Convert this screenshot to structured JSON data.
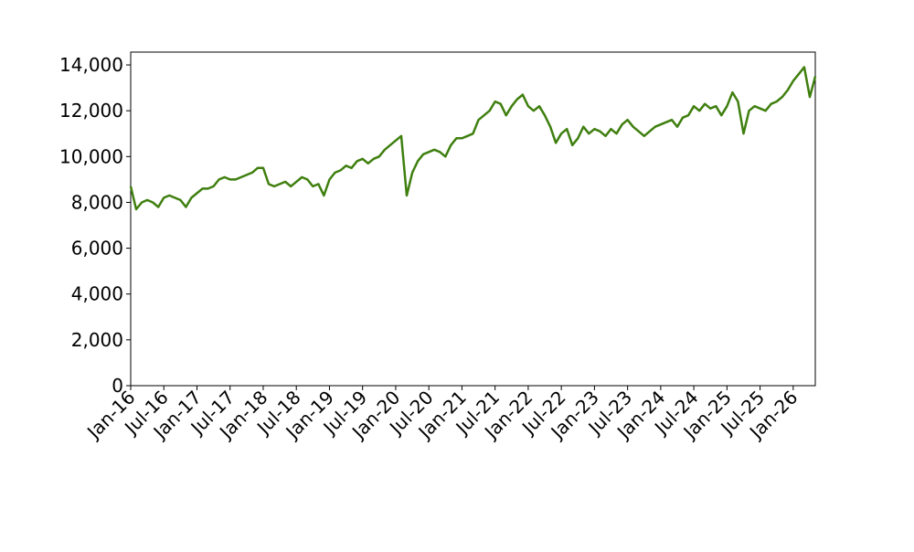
{
  "chart_data": {
    "type": "line",
    "x": [
      "2016-01",
      "2016-02",
      "2016-03",
      "2016-04",
      "2016-05",
      "2016-06",
      "2016-07",
      "2016-08",
      "2016-09",
      "2016-10",
      "2016-11",
      "2016-12",
      "2017-01",
      "2017-02",
      "2017-03",
      "2017-04",
      "2017-05",
      "2017-06",
      "2017-07",
      "2017-08",
      "2017-09",
      "2017-10",
      "2017-11",
      "2017-12",
      "2018-01",
      "2018-02",
      "2018-03",
      "2018-04",
      "2018-05",
      "2018-06",
      "2018-07",
      "2018-08",
      "2018-09",
      "2018-10",
      "2018-11",
      "2018-12",
      "2019-01",
      "2019-02",
      "2019-03",
      "2019-04",
      "2019-05",
      "2019-06",
      "2019-07",
      "2019-08",
      "2019-09",
      "2019-10",
      "2019-11",
      "2019-12",
      "2020-01",
      "2020-02",
      "2020-03",
      "2020-04",
      "2020-05",
      "2020-06",
      "2020-07",
      "2020-08",
      "2020-09",
      "2020-10",
      "2020-11",
      "2020-12",
      "2021-01",
      "2021-02",
      "2021-03",
      "2021-04",
      "2021-05",
      "2021-06",
      "2021-07",
      "2021-08",
      "2021-09",
      "2021-10",
      "2021-11",
      "2021-12",
      "2022-01",
      "2022-02",
      "2022-03",
      "2022-04",
      "2022-05",
      "2022-06",
      "2022-07",
      "2022-08",
      "2022-09",
      "2022-10",
      "2022-11",
      "2022-12",
      "2023-01",
      "2023-02",
      "2023-03",
      "2023-04",
      "2023-05",
      "2023-06",
      "2023-07",
      "2023-08",
      "2023-09",
      "2023-10",
      "2023-11",
      "2023-12",
      "2024-01",
      "2024-02",
      "2024-03",
      "2024-04",
      "2024-05",
      "2024-06",
      "2024-07",
      "2024-08",
      "2024-09",
      "2024-10",
      "2024-11",
      "2024-12",
      "2025-01",
      "2025-02",
      "2025-03",
      "2025-04",
      "2025-05",
      "2025-06",
      "2025-07",
      "2025-08",
      "2025-09",
      "2025-10",
      "2025-11",
      "2025-12",
      "2026-01",
      "2026-02",
      "2026-03",
      "2026-04",
      "2026-05"
    ],
    "series": [
      {
        "color": "#3f7f0f",
        "values": [
          8700,
          7700,
          8000,
          8100,
          8000,
          7800,
          8200,
          8300,
          8200,
          8100,
          7800,
          8200,
          8400,
          8600,
          8600,
          8700,
          9000,
          9100,
          9000,
          9000,
          9100,
          9200,
          9300,
          9500,
          9500,
          8800,
          8700,
          8800,
          8900,
          8700,
          8900,
          9100,
          9000,
          8700,
          8800,
          8300,
          9000,
          9300,
          9400,
          9600,
          9500,
          9800,
          9900,
          9700,
          9900,
          10000,
          10300,
          10500,
          10700,
          10900,
          8300,
          9300,
          9800,
          10100,
          10200,
          10300,
          10200,
          10000,
          10500,
          10800,
          10800,
          10900,
          11000,
          11600,
          11800,
          12000,
          12400,
          12300,
          11800,
          12200,
          12500,
          12700,
          12200,
          12000,
          12200,
          11800,
          11300,
          10600,
          11000,
          11200,
          10500,
          10800,
          11300,
          11000,
          11200,
          11100,
          10900,
          11200,
          11000,
          11400,
          11600,
          11300,
          11100,
          10900,
          11100,
          11300,
          11400,
          11500,
          11600,
          11300,
          11700,
          11800,
          12200,
          12000,
          12300,
          12100,
          12200,
          11800,
          12200,
          12800,
          12400,
          11000,
          12000,
          12200,
          12100,
          12000,
          12300,
          12400,
          12600,
          12900,
          13300,
          13600,
          13900,
          12600,
          13500
        ]
      }
    ],
    "xlim": [
      "2016-01",
      "2026-05"
    ],
    "xticks": [
      {
        "value": "2016-01",
        "label": "Jan-16"
      },
      {
        "value": "2016-07",
        "label": "Jul-16"
      },
      {
        "value": "2017-01",
        "label": "Jan-17"
      },
      {
        "value": "2017-07",
        "label": "Jul-17"
      },
      {
        "value": "2018-01",
        "label": "Jan-18"
      },
      {
        "value": "2018-07",
        "label": "Jul-18"
      },
      {
        "value": "2019-01",
        "label": "Jan-19"
      },
      {
        "value": "2019-07",
        "label": "Jul-19"
      },
      {
        "value": "2020-01",
        "label": "Jan-20"
      },
      {
        "value": "2020-07",
        "label": "Jul-20"
      },
      {
        "value": "2021-01",
        "label": "Jan-21"
      },
      {
        "value": "2021-07",
        "label": "Jul-21"
      },
      {
        "value": "2022-01",
        "label": "Jan-22"
      },
      {
        "value": "2022-07",
        "label": "Jul-22"
      },
      {
        "value": "2023-01",
        "label": "Jan-23"
      },
      {
        "value": "2023-07",
        "label": "Jul-23"
      },
      {
        "value": "2024-01",
        "label": "Jan-24"
      },
      {
        "value": "2024-07",
        "label": "Jul-24"
      },
      {
        "value": "2025-01",
        "label": "Jan-25"
      },
      {
        "value": "2025-07",
        "label": "Jul-25"
      },
      {
        "value": "2026-01",
        "label": "Jan-26"
      }
    ],
    "ylim": [
      0,
      14560
    ],
    "yticks": [
      0,
      {
        "value": 2000,
        "label": "2,000"
      },
      {
        "value": 4000,
        "label": "4,000"
      },
      {
        "value": 6000,
        "label": "6,000"
      },
      {
        "value": 8000,
        "label": "8,000"
      },
      {
        "value": 10000,
        "label": "10,000"
      },
      {
        "value": 12000,
        "label": "12,000"
      },
      {
        "value": 14000,
        "label": "14,000"
      }
    ]
  }
}
